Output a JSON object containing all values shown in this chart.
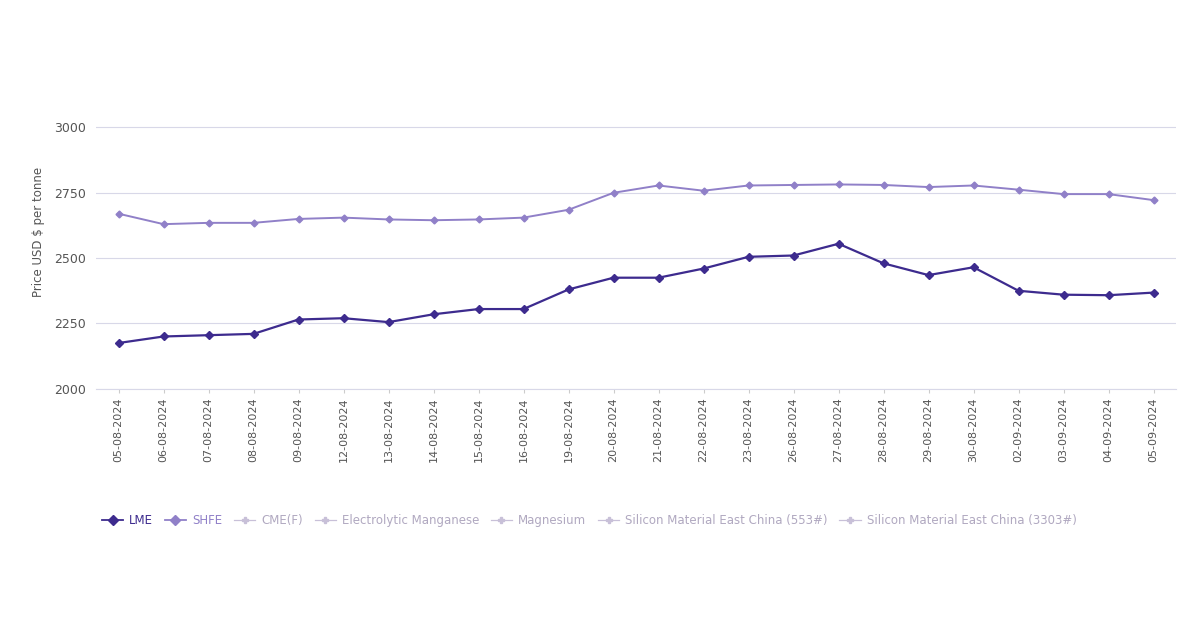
{
  "dates": [
    "05-08-2024",
    "06-08-2024",
    "07-08-2024",
    "08-08-2024",
    "09-08-2024",
    "12-08-2024",
    "13-08-2024",
    "14-08-2024",
    "15-08-2024",
    "16-08-2024",
    "19-08-2024",
    "20-08-2024",
    "21-08-2024",
    "22-08-2024",
    "23-08-2024",
    "26-08-2024",
    "27-08-2024",
    "28-08-2024",
    "29-08-2024",
    "30-08-2024",
    "02-09-2024",
    "03-09-2024",
    "04-09-2024",
    "05-09-2024"
  ],
  "lme": [
    2175,
    2200,
    2205,
    2210,
    2265,
    2270,
    2255,
    2285,
    2305,
    2305,
    2380,
    2425,
    2425,
    2460,
    2505,
    2510,
    2555,
    2480,
    2435,
    2465,
    2375,
    2360,
    2358,
    2368
  ],
  "shfe": [
    2670,
    2630,
    2635,
    2635,
    2650,
    2655,
    2648,
    2645,
    2648,
    2655,
    2685,
    2750,
    2778,
    2758,
    2778,
    2780,
    2782,
    2780,
    2772,
    2778,
    2762,
    2745,
    2745,
    2722
  ],
  "lme_color": "#3d2b8e",
  "shfe_color": "#9080c8",
  "ghost_color": "#c8c0d8",
  "ghost_text_color": "#b0a8c0",
  "ylabel": "Price USD $ per tonne",
  "ylim": [
    2000,
    3200
  ],
  "yticks": [
    2000,
    2250,
    2500,
    2750,
    3000
  ],
  "bg_color": "#ffffff",
  "grid_color": "#d8d8e8",
  "legend_labels": [
    "LME",
    "SHFE",
    "CME(F)",
    "Electrolytic Manganese",
    "Magnesium",
    "Silicon Material East China (553#)",
    "Silicon Material East China (3303#)"
  ],
  "axis_fontsize": 8.0,
  "legend_fontsize": 8.5,
  "ylabel_fontsize": 8.5,
  "ylabel_color": "#555555",
  "tick_color": "#888888",
  "tick_label_color": "#555555"
}
